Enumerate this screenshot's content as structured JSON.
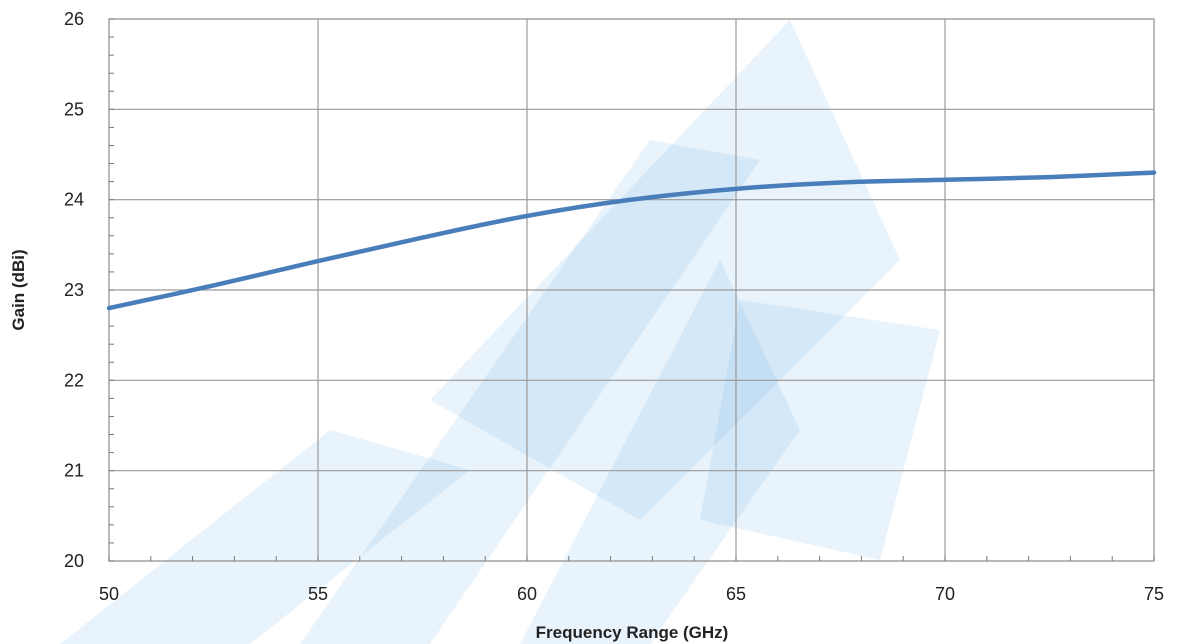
{
  "chart_data": {
    "type": "line",
    "title": "",
    "xlabel": "Frequency Range (GHz)",
    "ylabel": "Gain (dBi)",
    "xlim": [
      50,
      75
    ],
    "ylim": [
      20,
      26
    ],
    "x_ticks": [
      "50",
      "55",
      "60",
      "65",
      "70",
      "75"
    ],
    "y_ticks": [
      "20",
      "21",
      "22",
      "23",
      "24",
      "25",
      "26"
    ],
    "grid": true,
    "legend": "none",
    "series": [
      {
        "color": "#4a7ebb",
        "x": [
          50,
          52.5,
          55,
          57.5,
          60,
          62.5,
          65,
          67.5,
          70,
          72.5,
          75
        ],
        "y": [
          22.8,
          23.05,
          23.32,
          23.58,
          23.82,
          24.0,
          24.12,
          24.19,
          24.22,
          24.25,
          24.3
        ]
      }
    ]
  },
  "watermark": {
    "color": "#4a9fe0",
    "opacity": 0.12
  }
}
